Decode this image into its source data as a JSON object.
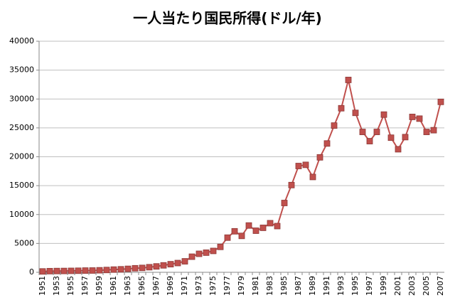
{
  "chart_data": {
    "type": "line",
    "title": "一人当たり国民所得(ドル/年)",
    "categories": [
      "1951",
      null,
      "1953",
      null,
      "1955",
      null,
      "1957",
      null,
      "1959",
      null,
      "1961",
      null,
      "1963",
      null,
      "1965",
      null,
      "1967",
      null,
      "1969",
      null,
      "1971",
      null,
      "1973",
      null,
      "1975",
      null,
      "1977",
      null,
      "1979",
      null,
      "1981",
      null,
      "1983",
      null,
      "1985",
      null,
      "1987",
      null,
      "1989",
      null,
      "1991",
      null,
      "1993",
      null,
      "1995",
      null,
      "1997",
      null,
      "1999",
      null,
      "2001",
      null,
      "2003",
      null,
      "2005",
      null,
      "2007"
    ],
    "series": [
      {
        "color": "#c0504d",
        "values": [
          150,
          200,
          220,
          230,
          250,
          270,
          300,
          310,
          350,
          400,
          470,
          520,
          600,
          700,
          760,
          880,
          1020,
          1200,
          1400,
          1600,
          1900,
          2700,
          3200,
          3400,
          3700,
          4400,
          6000,
          7100,
          6300,
          8100,
          7200,
          7700,
          8500,
          8000,
          12000,
          15100,
          18400,
          18600,
          16500,
          19900,
          22300,
          25400,
          28400,
          33300,
          27600,
          24300,
          22700,
          24300,
          27300,
          23300,
          21300,
          23400,
          26900,
          26600,
          24300,
          24600,
          29500
        ]
      }
    ],
    "ylim": [
      0,
      40000
    ],
    "yticks": [
      0,
      5000,
      10000,
      15000,
      20000,
      25000,
      30000,
      35000,
      40000
    ],
    "grid": true
  }
}
